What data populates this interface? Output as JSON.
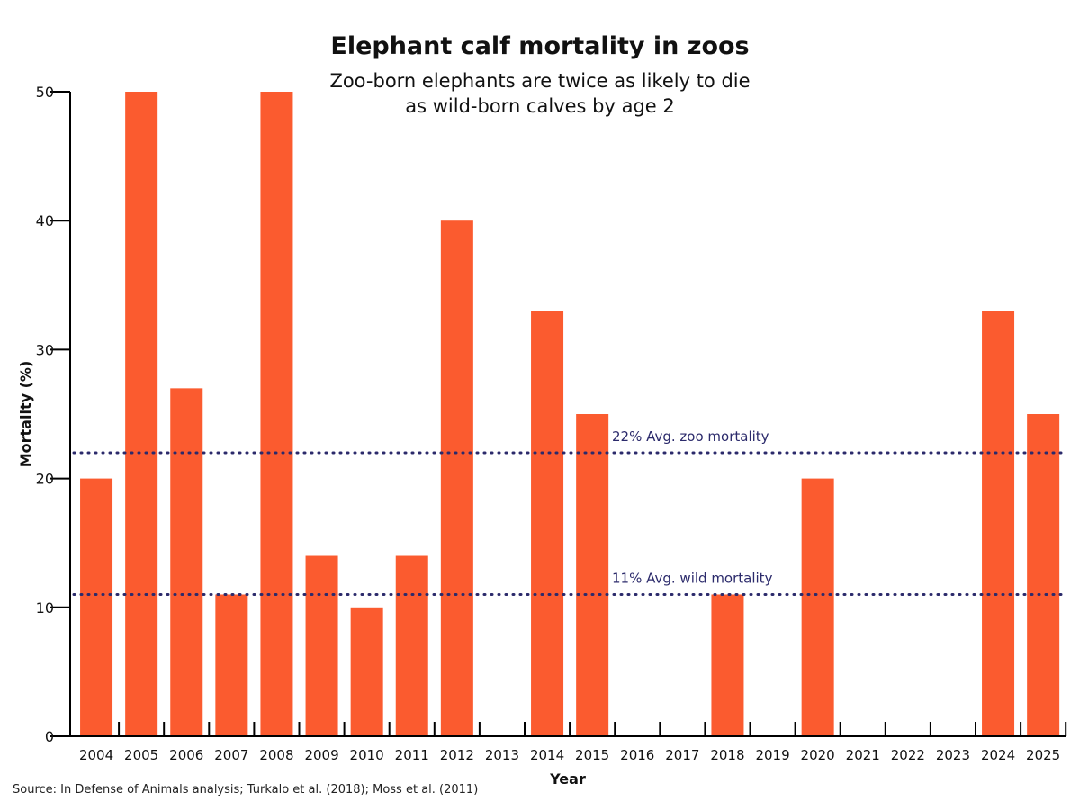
{
  "chart_data": {
    "type": "bar",
    "title": "Elephant calf mortality in zoos",
    "subtitle_lines": [
      "Zoo-born elephants are twice as likely to die",
      "as wild-born calves by age 2"
    ],
    "xlabel": "Year",
    "ylabel": "Mortality (%)",
    "ylim": [
      0,
      50
    ],
    "yticks": [
      0,
      10,
      20,
      30,
      40,
      50
    ],
    "categories": [
      "2004",
      "2005",
      "2006",
      "2007",
      "2008",
      "2009",
      "2010",
      "2011",
      "2012",
      "2013",
      "2014",
      "2015",
      "2016",
      "2017",
      "2018",
      "2019",
      "2020",
      "2021",
      "2022",
      "2023",
      "2024",
      "2025"
    ],
    "values": [
      20,
      50,
      27,
      11,
      50,
      14,
      10,
      14,
      40,
      0,
      33,
      25,
      0,
      0,
      11,
      0,
      20,
      0,
      0,
      0,
      33,
      25
    ],
    "bar_color": "#fb5b2f",
    "reference_lines": [
      {
        "value": 22,
        "label": "22% Avg. zoo mortality",
        "color": "#2b2a6b"
      },
      {
        "value": 11,
        "label": "11% Avg. wild mortality",
        "color": "#2b2a6b"
      }
    ],
    "source": "Source: In Defense of Animals analysis; Turkalo et al. (2018); Moss et al. (2011)"
  }
}
